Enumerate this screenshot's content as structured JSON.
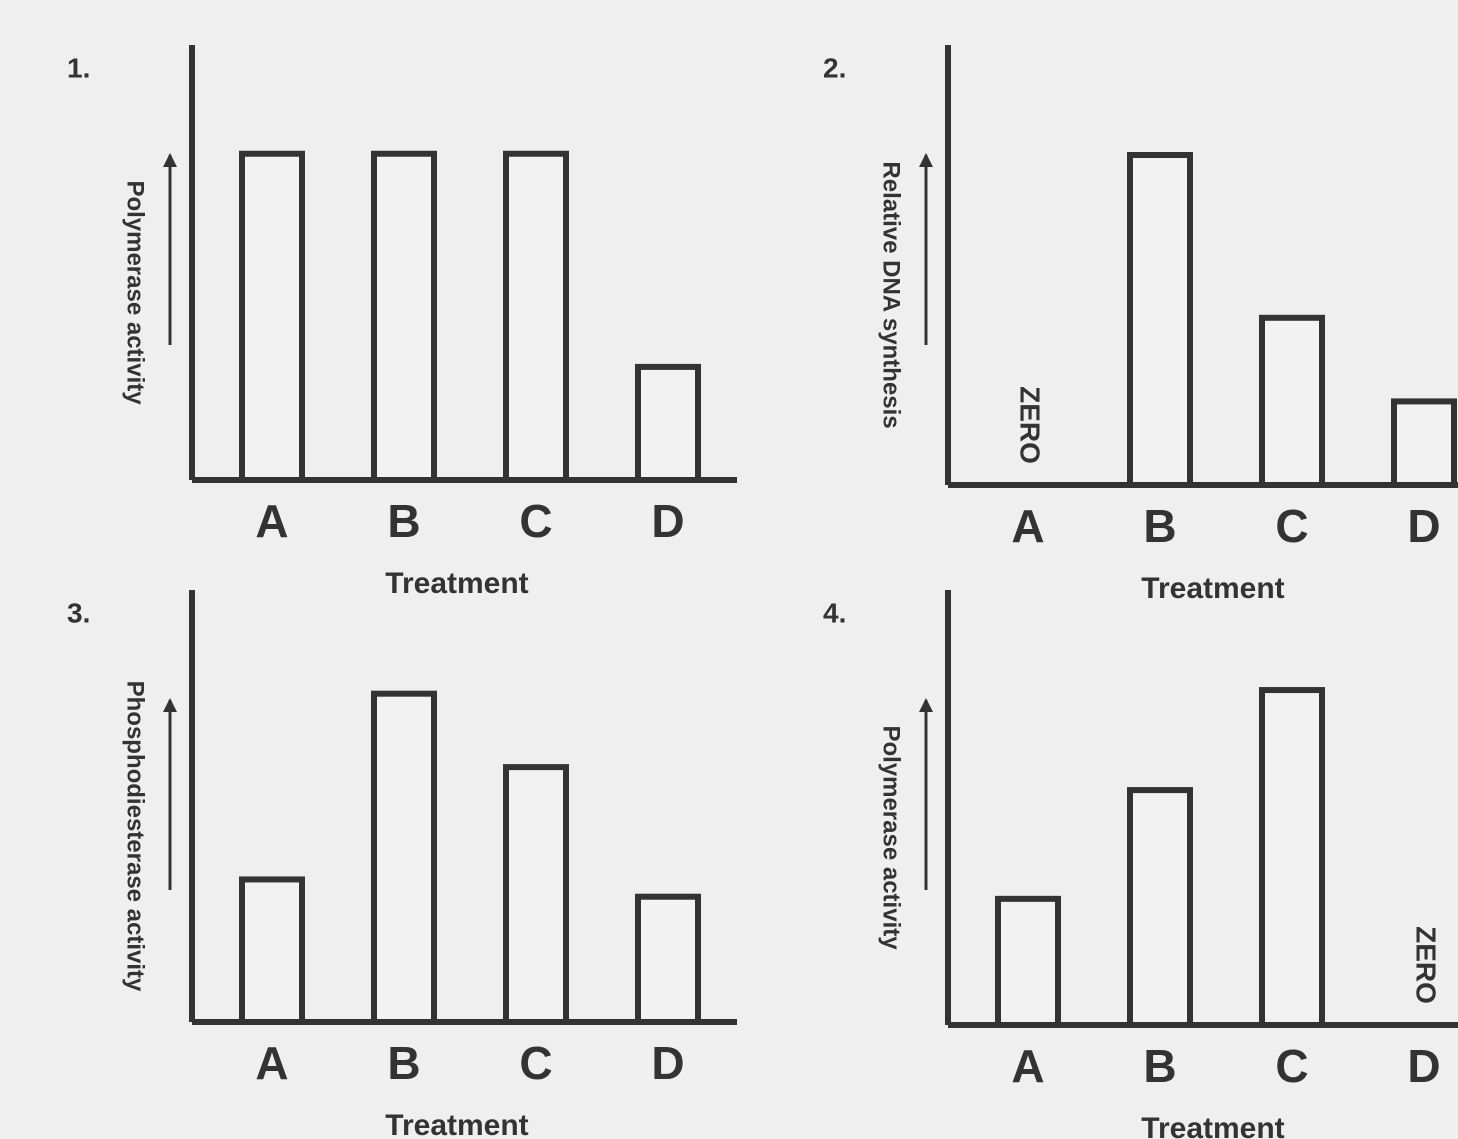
{
  "chart_data": [
    {
      "type": "bar",
      "title": "1.",
      "ylabel": "Polymerase activity",
      "xlabel": "Treatment",
      "categories": [
        "A",
        "B",
        "C",
        "D"
      ],
      "values": [
        75,
        75,
        75,
        26
      ],
      "ylim": [
        0,
        100
      ]
    },
    {
      "type": "bar",
      "title": "2.",
      "ylabel": "Relative DNA synthesis",
      "xlabel": "Treatment",
      "categories": [
        "A",
        "B",
        "C",
        "D"
      ],
      "values": [
        0,
        75,
        38,
        19
      ],
      "ylim": [
        0,
        100
      ],
      "annotations": [
        {
          "text": "ZERO",
          "at": "A"
        }
      ]
    },
    {
      "type": "bar",
      "title": "3.",
      "ylabel": "Phosphodiesterase activity",
      "xlabel": "Treatment",
      "categories": [
        "A",
        "B",
        "C",
        "D"
      ],
      "values": [
        33,
        76,
        59,
        29
      ],
      "ylim": [
        0,
        100
      ]
    },
    {
      "type": "bar",
      "title": "4.",
      "ylabel": "Polymerase activity",
      "xlabel": "Treatment",
      "categories": [
        "A",
        "B",
        "C",
        "D"
      ],
      "values": [
        29,
        54,
        77,
        0
      ],
      "ylim": [
        0,
        100
      ],
      "annotations": [
        {
          "text": "ZERO",
          "at": "D"
        }
      ]
    }
  ]
}
